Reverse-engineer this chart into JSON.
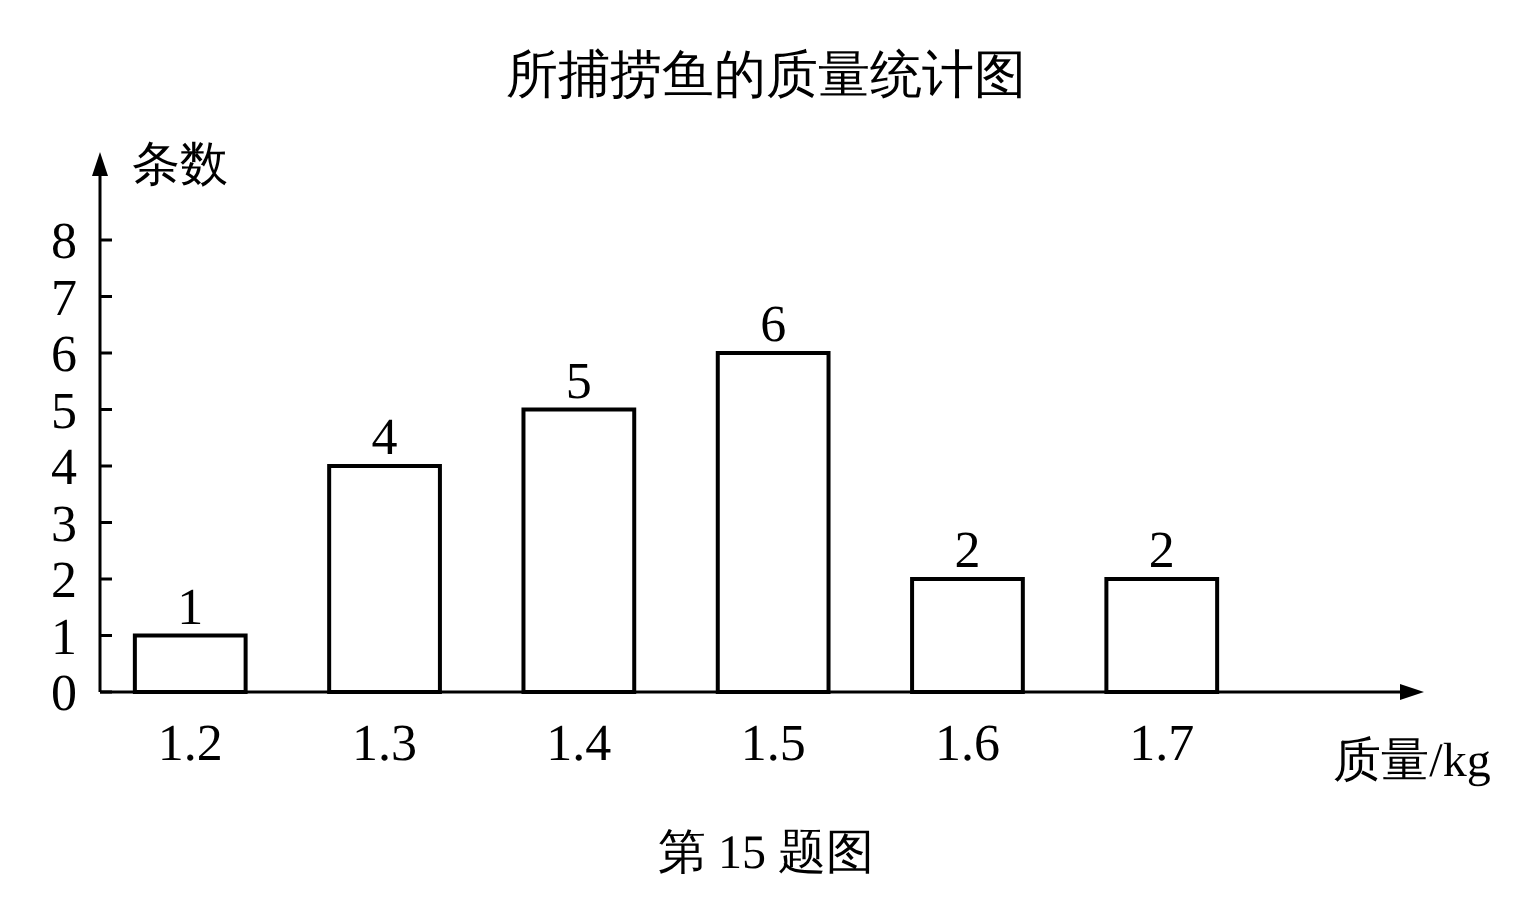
{
  "chart_data": {
    "type": "bar",
    "title": "所捕捞鱼的质量统计图",
    "xlabel": "质量/kg",
    "ylabel": "条数",
    "categories": [
      "1.2",
      "1.3",
      "1.4",
      "1.5",
      "1.6",
      "1.7"
    ],
    "values": [
      1,
      4,
      5,
      6,
      2,
      2
    ],
    "color": "#ffffff",
    "ylim": [
      0,
      8
    ],
    "yticks": [
      0,
      1,
      2,
      3,
      4,
      5,
      6,
      7,
      8
    ],
    "grid": false,
    "data_labels": true,
    "annotations": [
      "第 15 题图"
    ]
  }
}
